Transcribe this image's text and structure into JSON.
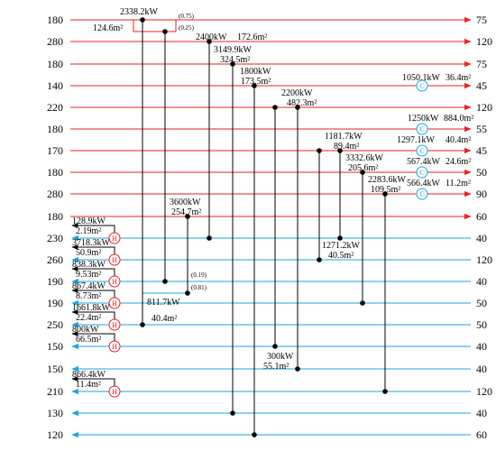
{
  "colors": {
    "hot": "#e8211f",
    "cold": "#19a6dc",
    "link": "#000000",
    "heater": "#e8211f",
    "cooler": "#19a6dc"
  },
  "hot_streams": [
    {
      "id": "H1",
      "supply": "180",
      "target": "75"
    },
    {
      "id": "H2",
      "supply": "280",
      "target": "120"
    },
    {
      "id": "H3",
      "supply": "180",
      "target": "75"
    },
    {
      "id": "H4",
      "supply": "140",
      "target": "45"
    },
    {
      "id": "H5",
      "supply": "220",
      "target": "120"
    },
    {
      "id": "H6",
      "supply": "180",
      "target": "55"
    },
    {
      "id": "H7",
      "supply": "170",
      "target": "45"
    },
    {
      "id": "H8",
      "supply": "180",
      "target": "50"
    },
    {
      "id": "H9",
      "supply": "280",
      "target": "90"
    },
    {
      "id": "H10",
      "supply": "180",
      "target": "60"
    }
  ],
  "cold_streams": [
    {
      "id": "C1",
      "target": "230",
      "supply": "40"
    },
    {
      "id": "C2",
      "target": "260",
      "supply": "120"
    },
    {
      "id": "C3",
      "target": "190",
      "supply": "40"
    },
    {
      "id": "C4",
      "target": "190",
      "supply": "50"
    },
    {
      "id": "C5",
      "target": "250",
      "supply": "50"
    },
    {
      "id": "C6",
      "target": "150",
      "supply": "40"
    },
    {
      "id": "C7",
      "target": "150",
      "supply": "40"
    },
    {
      "id": "C8",
      "target": "210",
      "supply": "120"
    },
    {
      "id": "C9",
      "target": "130",
      "supply": "40"
    },
    {
      "id": "C10",
      "target": "120",
      "supply": "60"
    }
  ],
  "exchangers": [
    {
      "duty": "2338.2kW",
      "area": "124.6m²",
      "split_top": "(0.75)",
      "split_bottom": "(0.25)"
    },
    {
      "duty": "2400kW",
      "area": "172.6m²"
    },
    {
      "duty": "3149.9kW",
      "area": "324.5m²"
    },
    {
      "duty": "1800kW",
      "area": "173.5m²"
    },
    {
      "duty": "2200kW",
      "area": "482.3m²"
    },
    {
      "duty": "1181.7kW",
      "area": "89.4m²"
    },
    {
      "duty": "3332.6kW",
      "area": "205.6m²"
    },
    {
      "duty": "2283.6kW",
      "area": "109.5m²"
    },
    {
      "duty": "3600kW",
      "area": "254.7m²"
    },
    {
      "duty": "1271.2kW",
      "area": "40.5m²"
    },
    {
      "duty": "811.7kW",
      "area": "40.4m²",
      "split_top": "(0.19)",
      "split_bottom": "(0.81)"
    },
    {
      "duty": "300kW",
      "area": "55.1m²"
    }
  ],
  "coolers": [
    {
      "symbol": "C",
      "duty": "1050.1kW",
      "area": "36.4m²"
    },
    {
      "symbol": "C",
      "duty": "1250kW",
      "area": "884.0m²"
    },
    {
      "symbol": "C",
      "duty": "1297.1kW",
      "area": "40.4m²"
    },
    {
      "symbol": "C",
      "duty": "567.4kW",
      "area": "24.6m²"
    },
    {
      "symbol": "C",
      "duty": "566.4kW",
      "area": "11.2m²"
    }
  ],
  "heaters": [
    {
      "symbol": "H",
      "duty": "128.9kW",
      "area": "2.19m²"
    },
    {
      "symbol": "H",
      "duty": "3718.3kW",
      "area": "50.9m²"
    },
    {
      "symbol": "H",
      "duty": "838.3kW",
      "area": "9.53m²"
    },
    {
      "symbol": "H",
      "duty": "867.4kW",
      "area": "8.73m²"
    },
    {
      "symbol": "H",
      "duty": "1661.8kW",
      "area": "22.4m²"
    },
    {
      "symbol": "H",
      "duty": "800kW",
      "area": "66.5m²"
    },
    {
      "symbol": "H",
      "duty": "866.4kW",
      "area": "11.4m²"
    }
  ]
}
